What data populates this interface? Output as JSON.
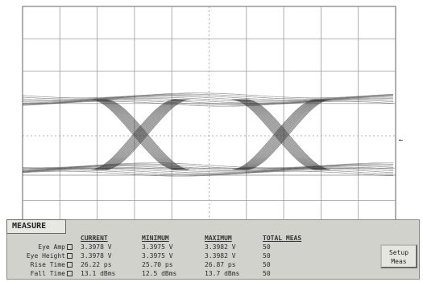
{
  "panel": {
    "tab_label": "MEASURE",
    "headers": [
      "CURRENT",
      "MINIMUM",
      "MAXIMUM",
      "TOTAL MEAS"
    ],
    "rows": [
      {
        "label": "Eye Amp",
        "current": "3.3978 V",
        "minimum": "3.3975 V",
        "maximum": "3.3982 V",
        "total": "50"
      },
      {
        "label": "Eye Height",
        "current": "3.3978 V",
        "minimum": "3.3975 V",
        "maximum": "3.3982 V",
        "total": "50"
      },
      {
        "label": "Rise Time",
        "current": "26.22 ps",
        "minimum": "25.70 ps",
        "maximum": "26.87 ps",
        "total": "50"
      },
      {
        "label": "Fall Time",
        "current": "13.1 dBms",
        "minimum": "12.5 dBms",
        "maximum": "13.7 dBms",
        "total": "50"
      }
    ]
  },
  "setup_button": {
    "line1": "Setup",
    "line2": "Meas"
  },
  "colors": {
    "grid": "#9a9a9a",
    "trace": "#3a3a3a",
    "panel": "#d2d2cc"
  }
}
